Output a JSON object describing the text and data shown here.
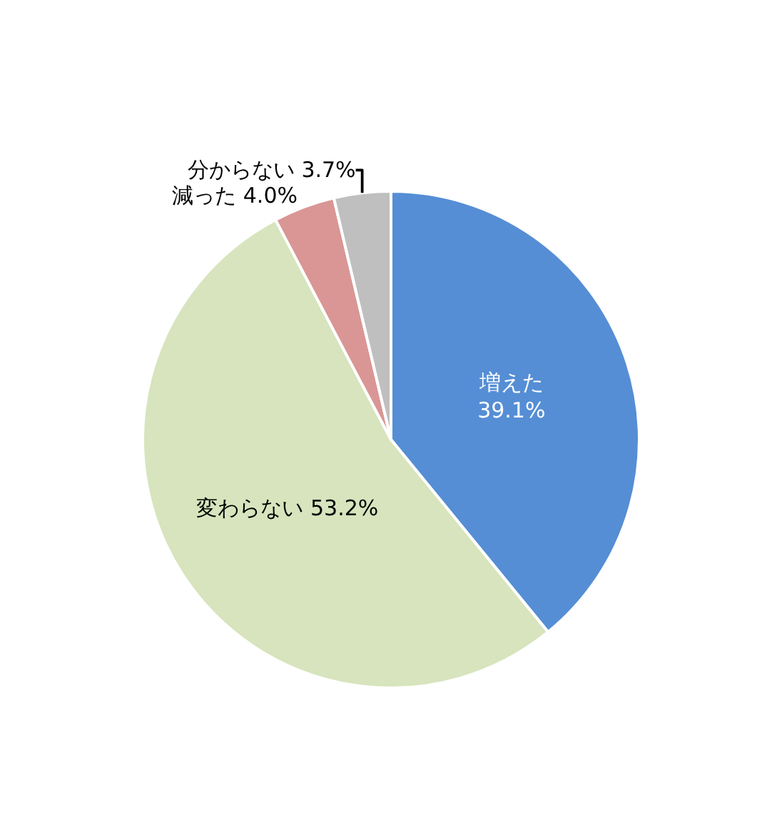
{
  "chart_data": {
    "type": "pie",
    "categories": [
      "増えた",
      "変わらない",
      "減った",
      "分からない"
    ],
    "values": [
      39.1,
      53.2,
      4.0,
      3.7
    ],
    "value_labels": [
      "39.1%",
      "53.2%",
      "4.0%",
      "3.7%"
    ],
    "colors": [
      "#558ed5",
      "#d7e4bd",
      "#d99694",
      "#bfbfbf"
    ],
    "legend": false
  }
}
